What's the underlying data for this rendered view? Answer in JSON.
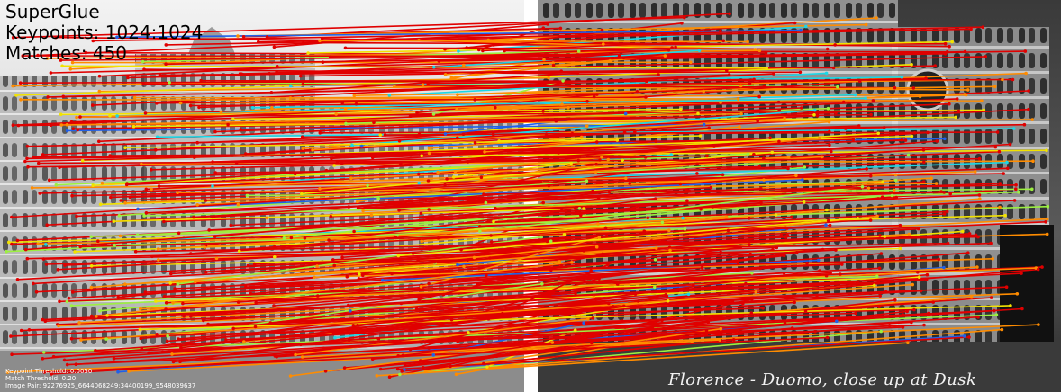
{
  "title": "SuperGlue",
  "keypoints_label": "Keypoints: 1024:1024",
  "matches_label": "Matches: 450",
  "keypoint_threshold": "Keypoint Threshold: 0.0050",
  "match_threshold": "Match Threshold: 0.20",
  "image_pair": "Image Pair: 92276925_6644068249:34400199_9548039637",
  "caption": "Florence - Duomo, close up at Dusk",
  "colors": {
    "strong": "#e00000",
    "medium": "#ff8c00",
    "weak_yellow": "#f2e200",
    "weak_green": "#9cf040",
    "weak_cyan": "#1cd6e6",
    "weak_blue": "#2060e8"
  }
}
